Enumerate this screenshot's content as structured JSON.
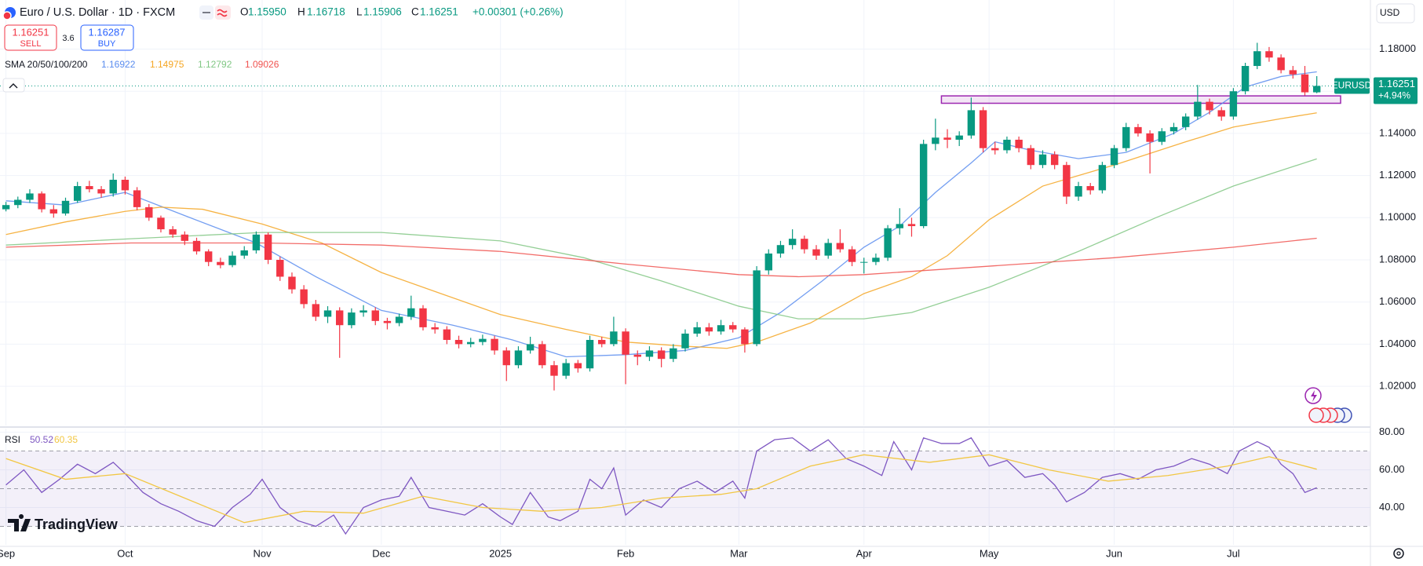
{
  "header": {
    "symbol": "Euro / U.S. Dollar · 1D · FXCM",
    "open_label": "O",
    "open": "1.15950",
    "high_label": "H",
    "high": "1.16718",
    "low_label": "L",
    "low": "1.15906",
    "close_label": "C",
    "close": "1.16251",
    "change": "+0.00301 (+0.26%)"
  },
  "trade": {
    "sell": "1.16251",
    "sell_label": "SELL",
    "spread": "3.6",
    "buy": "1.16287",
    "buy_label": "BUY"
  },
  "currency": "USD",
  "price_tag": {
    "symbol": "EURUSD",
    "price": "1.16251",
    "change": "+4.94%"
  },
  "logo": "TradingView",
  "chart_data": [
    {
      "type": "candlestick",
      "up_color": "#089981",
      "down_color": "#f23645",
      "x": [
        0,
        2,
        4,
        6,
        8,
        10,
        12,
        14,
        16,
        18,
        20,
        22,
        24,
        26,
        28,
        30,
        32,
        34,
        36,
        38,
        40,
        42,
        44,
        46,
        48,
        50,
        52,
        54,
        56,
        58,
        60,
        62,
        64,
        66,
        68,
        70,
        72,
        74,
        76,
        78,
        80,
        82,
        84,
        86,
        88,
        90,
        92,
        94,
        96,
        98,
        100,
        102,
        104,
        106,
        108,
        110,
        112,
        114,
        116,
        118,
        120,
        122,
        124,
        126,
        128,
        130,
        132,
        134,
        136,
        138,
        140,
        142,
        144,
        146,
        148,
        150,
        152,
        154,
        156,
        158,
        160,
        162,
        164,
        166,
        168,
        170,
        172,
        174,
        176,
        178,
        180,
        182,
        184,
        186,
        188,
        190,
        192,
        194,
        196,
        198,
        200,
        202,
        204,
        206,
        208,
        210,
        212,
        214,
        216,
        218,
        220
      ],
      "open": [
        1.104,
        1.106,
        1.1085,
        1.1115,
        1.104,
        1.102,
        1.108,
        1.115,
        1.1135,
        1.1115,
        1.118,
        1.113,
        1.105,
        1.1,
        1.0945,
        1.092,
        1.089,
        1.084,
        1.079,
        1.0775,
        1.082,
        1.0845,
        1.092,
        1.08,
        1.072,
        1.066,
        1.059,
        1.053,
        1.056,
        1.049,
        1.055,
        1.056,
        1.051,
        1.05,
        1.053,
        1.057,
        1.048,
        1.047,
        1.042,
        1.04,
        1.041,
        1.0425,
        1.037,
        1.03,
        1.037,
        1.04,
        1.03,
        1.025,
        1.031,
        1.0285,
        1.042,
        1.04,
        1.046,
        1.035,
        1.034,
        1.037,
        1.033,
        1.038,
        1.045,
        1.048,
        1.046,
        1.049,
        1.047,
        1.04,
        1.075,
        1.083,
        1.087,
        1.09,
        1.085,
        1.082,
        1.088,
        1.085,
        1.079,
        1.079,
        1.081,
        1.095,
        1.097,
        1.096,
        1.135,
        1.138,
        1.137,
        1.139,
        1.151,
        1.133,
        1.132,
        1.137,
        1.133,
        1.125,
        1.13,
        1.125,
        1.11,
        1.115,
        1.113,
        1.125,
        1.133,
        1.143,
        1.14,
        1.136,
        1.141,
        1.143,
        1.148,
        1.155,
        1.151,
        1.148,
        1.16,
        1.172,
        1.179,
        1.176,
        1.17,
        1.168,
        1.1595
      ],
      "high": [
        1.1075,
        1.11,
        1.1135,
        1.1125,
        1.106,
        1.1095,
        1.117,
        1.1175,
        1.115,
        1.121,
        1.1195,
        1.1145,
        1.1065,
        1.101,
        1.096,
        1.0935,
        1.0905,
        1.085,
        1.081,
        1.084,
        1.0865,
        1.0935,
        1.093,
        1.0815,
        1.074,
        1.068,
        1.061,
        1.058,
        1.0575,
        1.057,
        1.0585,
        1.0575,
        1.0525,
        1.0545,
        1.063,
        1.0585,
        1.05,
        1.0485,
        1.044,
        1.043,
        1.0445,
        1.044,
        1.0385,
        1.039,
        1.0435,
        1.0415,
        1.032,
        1.033,
        1.0325,
        1.044,
        1.0435,
        1.053,
        1.0475,
        1.037,
        1.039,
        1.0385,
        1.04,
        1.047,
        1.0505,
        1.05,
        1.0515,
        1.0505,
        1.048,
        1.077,
        1.085,
        1.089,
        1.0945,
        1.0915,
        1.087,
        1.09,
        1.0945,
        1.0865,
        1.081,
        1.083,
        1.0965,
        1.1045,
        1.1,
        1.137,
        1.147,
        1.142,
        1.141,
        1.157,
        1.1525,
        1.136,
        1.1385,
        1.1385,
        1.1345,
        1.132,
        1.1315,
        1.1265,
        1.117,
        1.1165,
        1.1265,
        1.1345,
        1.145,
        1.1445,
        1.1415,
        1.1425,
        1.145,
        1.1495,
        1.163,
        1.1565,
        1.1525,
        1.1615,
        1.1735,
        1.183,
        1.181,
        1.1775,
        1.172,
        1.172,
        1.16718
      ],
      "low": [
        1.103,
        1.1045,
        1.107,
        1.1025,
        1.1,
        1.101,
        1.107,
        1.112,
        1.1095,
        1.11,
        1.111,
        1.1035,
        1.0985,
        1.093,
        1.0905,
        1.087,
        1.0825,
        1.077,
        1.076,
        1.0765,
        1.0805,
        1.083,
        1.078,
        1.07,
        1.064,
        1.057,
        1.051,
        1.05,
        1.0335,
        1.0475,
        1.053,
        1.049,
        1.047,
        1.0485,
        1.0515,
        1.0465,
        1.045,
        1.04,
        1.038,
        1.0385,
        1.0395,
        1.035,
        1.0225,
        1.0285,
        1.0355,
        1.0285,
        1.018,
        1.0235,
        1.0265,
        1.027,
        1.0385,
        1.039,
        1.021,
        1.03,
        1.032,
        1.029,
        1.0315,
        1.0365,
        1.0435,
        1.044,
        1.0445,
        1.0455,
        1.036,
        1.039,
        1.073,
        1.081,
        1.085,
        1.083,
        1.08,
        1.0805,
        1.0835,
        1.077,
        1.0735,
        1.0775,
        1.0795,
        1.092,
        1.091,
        1.095,
        1.132,
        1.133,
        1.134,
        1.1375,
        1.131,
        1.13,
        1.1305,
        1.131,
        1.123,
        1.1235,
        1.123,
        1.1065,
        1.108,
        1.111,
        1.1115,
        1.1235,
        1.1315,
        1.1385,
        1.121,
        1.1345,
        1.1395,
        1.1415,
        1.1465,
        1.149,
        1.146,
        1.1465,
        1.1585,
        1.1705,
        1.174,
        1.1685,
        1.166,
        1.158,
        1.15906
      ],
      "close": [
        1.106,
        1.1085,
        1.1115,
        1.104,
        1.102,
        1.108,
        1.115,
        1.1135,
        1.1115,
        1.118,
        1.113,
        1.105,
        1.1,
        1.0945,
        1.092,
        1.089,
        1.084,
        1.079,
        1.0775,
        1.082,
        1.0845,
        1.092,
        1.08,
        1.072,
        1.066,
        1.059,
        1.053,
        1.056,
        1.049,
        1.055,
        1.056,
        1.051,
        1.05,
        1.053,
        1.057,
        1.048,
        1.047,
        1.042,
        1.04,
        1.041,
        1.0425,
        1.037,
        1.03,
        1.037,
        1.04,
        1.03,
        1.025,
        1.031,
        1.0285,
        1.042,
        1.04,
        1.046,
        1.035,
        1.034,
        1.037,
        1.033,
        1.038,
        1.045,
        1.048,
        1.046,
        1.049,
        1.047,
        1.04,
        1.075,
        1.083,
        1.087,
        1.09,
        1.085,
        1.082,
        1.088,
        1.085,
        1.079,
        1.079,
        1.081,
        1.095,
        1.097,
        1.096,
        1.135,
        1.138,
        1.137,
        1.139,
        1.151,
        1.133,
        1.132,
        1.137,
        1.133,
        1.125,
        1.13,
        1.125,
        1.11,
        1.115,
        1.113,
        1.125,
        1.133,
        1.143,
        1.14,
        1.136,
        1.141,
        1.143,
        1.148,
        1.155,
        1.151,
        1.148,
        1.16,
        1.172,
        1.179,
        1.176,
        1.17,
        1.168,
        1.1595,
        1.16251
      ],
      "xlim": [
        -1,
        229
      ],
      "xticks": [
        {
          "value": 0,
          "label": "Sep"
        },
        {
          "value": 20,
          "label": "Oct"
        },
        {
          "value": 43,
          "label": "Nov"
        },
        {
          "value": 63,
          "label": "Dec"
        },
        {
          "value": 83,
          "label": "2025"
        },
        {
          "value": 104,
          "label": "Feb"
        },
        {
          "value": 123,
          "label": "Mar"
        },
        {
          "value": 144,
          "label": "Apr"
        },
        {
          "value": 165,
          "label": "May"
        },
        {
          "value": 186,
          "label": "Jun"
        },
        {
          "value": 206,
          "label": "Jul"
        }
      ],
      "ylim": [
        1.0014,
        1.2033
      ],
      "yticks": [
        {
          "value": 1.02,
          "label": "1.02000"
        },
        {
          "value": 1.04,
          "label": "1.04000"
        },
        {
          "value": 1.06,
          "label": "1.06000"
        },
        {
          "value": 1.08,
          "label": "1.08000"
        },
        {
          "value": 1.1,
          "label": "1.10000"
        },
        {
          "value": 1.12,
          "label": "1.12000"
        },
        {
          "value": 1.14,
          "label": "1.14000"
        },
        {
          "value": 1.16,
          "label": "1.16000"
        },
        {
          "value": 1.18,
          "label": "1.18000"
        }
      ],
      "grid": true,
      "last_price": 1.16251,
      "zone": {
        "x": [
          157,
          224
        ],
        "y": [
          1.1543,
          1.1578
        ],
        "color": "#9c27b0"
      },
      "indicator_label": "SMA 20/50/100/200",
      "series": [
        {
          "color": "#5b8def",
          "x": [
            0,
            10,
            20,
            30,
            42,
            52,
            63,
            75,
            85,
            94,
            104,
            114,
            123,
            130,
            137,
            144,
            150,
            156,
            162,
            166,
            172,
            180,
            188,
            196,
            202,
            208,
            214,
            220
          ],
          "values": [
            1.108,
            1.106,
            1.112,
            1.101,
            1.088,
            1.072,
            1.056,
            1.049,
            1.042,
            1.034,
            1.035,
            1.037,
            1.043,
            1.055,
            1.07,
            1.086,
            1.096,
            1.112,
            1.126,
            1.136,
            1.132,
            1.128,
            1.131,
            1.14,
            1.15,
            1.162,
            1.167,
            1.16922
          ]
        },
        {
          "color": "#f5a623",
          "x": [
            0,
            10,
            20,
            26,
            33,
            43,
            53,
            63,
            73,
            83,
            94,
            104,
            114,
            121,
            126,
            135,
            144,
            152,
            158,
            165,
            174,
            186,
            198,
            206,
            214,
            220
          ],
          "values": [
            1.092,
            1.098,
            1.103,
            1.105,
            1.104,
            1.097,
            1.088,
            1.074,
            1.064,
            1.054,
            1.047,
            1.041,
            1.039,
            1.038,
            1.041,
            1.05,
            1.064,
            1.072,
            1.082,
            1.099,
            1.115,
            1.125,
            1.136,
            1.143,
            1.147,
            1.14975
          ]
        },
        {
          "color": "#81c784",
          "x": [
            0,
            21,
            43,
            63,
            83,
            97,
            110,
            123,
            133,
            144,
            152,
            165,
            180,
            193,
            206,
            220
          ],
          "values": [
            1.087,
            1.09,
            1.093,
            1.093,
            1.089,
            1.081,
            1.07,
            1.058,
            1.052,
            1.052,
            1.055,
            1.067,
            1.084,
            1.1,
            1.115,
            1.12792
          ]
        },
        {
          "color": "#f0524f",
          "x": [
            0,
            21,
            43,
            63,
            83,
            104,
            123,
            133,
            144,
            165,
            186,
            206,
            220
          ],
          "values": [
            1.086,
            1.088,
            1.088,
            1.087,
            1.084,
            1.078,
            1.073,
            1.072,
            1.073,
            1.077,
            1.081,
            1.086,
            1.09026
          ]
        }
      ]
    },
    {
      "type": "line",
      "title": "RSI",
      "xlim": [
        -1,
        229
      ],
      "ylim": [
        20.2,
        81.9
      ],
      "yticks": [
        {
          "value": 40,
          "label": "40.00"
        },
        {
          "value": 60,
          "label": "60.00"
        },
        {
          "value": 80,
          "label": "80.00"
        }
      ],
      "levels": [
        70,
        50,
        30
      ],
      "band_color": "#7e57c2",
      "series": [
        {
          "color": "#7e57c2",
          "x": [
            0,
            3,
            6,
            9,
            12,
            15,
            18,
            20,
            23,
            26,
            29,
            32,
            35,
            38,
            41,
            43,
            46,
            49,
            52,
            55,
            57,
            60,
            63,
            66,
            68,
            71,
            74,
            77,
            80,
            83,
            85,
            88,
            91,
            93,
            96,
            98,
            100,
            102,
            104,
            107,
            110,
            113,
            116,
            119,
            122,
            124,
            126,
            129,
            132,
            135,
            138,
            141,
            144,
            147,
            149,
            152,
            154,
            157,
            160,
            162,
            165,
            168,
            171,
            174,
            176,
            178,
            181,
            184,
            187,
            190,
            193,
            196,
            199,
            202,
            205,
            207,
            210,
            212,
            214,
            216,
            218,
            220
          ],
          "values": [
            52,
            60,
            48,
            55,
            63,
            58,
            64,
            58,
            48,
            42,
            38,
            33,
            30,
            40,
            47,
            55,
            40,
            33,
            30,
            36,
            26,
            40,
            44,
            46,
            56,
            40,
            38,
            36,
            42,
            35,
            31,
            48,
            35,
            33,
            38,
            55,
            50,
            61,
            36,
            44,
            40,
            50,
            54,
            48,
            54,
            45,
            70,
            76,
            77,
            70,
            76,
            66,
            62,
            57,
            75,
            60,
            77,
            74,
            74,
            77,
            62,
            65,
            56,
            58,
            52,
            43,
            48,
            56,
            58,
            55,
            60,
            62,
            66,
            63,
            58,
            70,
            75,
            72,
            63,
            58,
            48,
            50.52
          ]
        },
        {
          "color": "#f2c744",
          "x": [
            0,
            10,
            20,
            30,
            40,
            50,
            60,
            70,
            80,
            90,
            100,
            110,
            120,
            126,
            135,
            144,
            155,
            165,
            175,
            185,
            195,
            205,
            212,
            220
          ],
          "values": [
            66,
            55,
            58,
            45,
            32,
            38,
            37,
            46,
            40,
            38,
            40,
            45,
            47,
            50,
            62,
            68,
            64,
            68,
            60,
            54,
            57,
            62,
            67,
            60.35
          ]
        }
      ]
    }
  ]
}
